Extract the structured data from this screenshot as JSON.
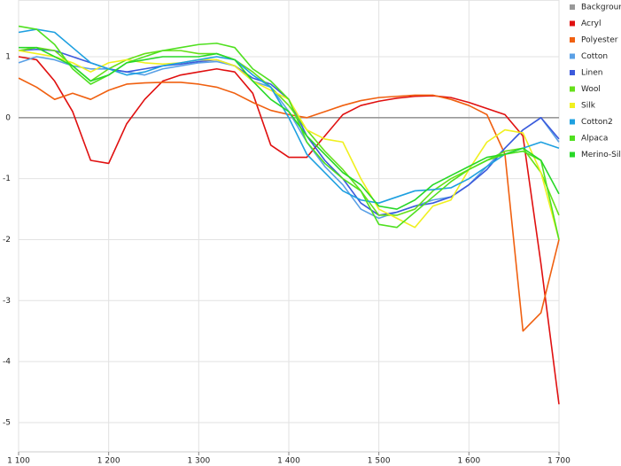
{
  "chart_data": {
    "type": "line",
    "x": [
      1100,
      1120,
      1140,
      1160,
      1180,
      1200,
      1220,
      1240,
      1260,
      1280,
      1300,
      1320,
      1340,
      1360,
      1380,
      1400,
      1420,
      1440,
      1460,
      1480,
      1500,
      1520,
      1540,
      1560,
      1580,
      1600,
      1620,
      1640,
      1660,
      1680,
      1700
    ],
    "xlim": [
      1100,
      1700
    ],
    "xticks": [
      {
        "value": 1100,
        "label": "1 100"
      },
      {
        "value": 1200,
        "label": "1 200"
      },
      {
        "value": 1300,
        "label": "1 300"
      },
      {
        "value": 1400,
        "label": "1 400"
      },
      {
        "value": 1500,
        "label": "1 500"
      },
      {
        "value": 1600,
        "label": "1 600"
      },
      {
        "value": 1700,
        "label": "1 700"
      }
    ],
    "ylim": [
      -5.48,
      1.93
    ],
    "yticks": [
      -5,
      -4,
      -3,
      -2,
      -1,
      0,
      1
    ],
    "grid": true,
    "legend": "right",
    "series": [
      {
        "name": "Background",
        "color": "#999999",
        "values": [
          0,
          0,
          0,
          0,
          0,
          0,
          0,
          0,
          0,
          0,
          0,
          0,
          0,
          0,
          0,
          0,
          0,
          0,
          0,
          0,
          0,
          0,
          0,
          0,
          0,
          0,
          0,
          0,
          0,
          0,
          0
        ]
      },
      {
        "name": "Acryl",
        "color": "#e01010",
        "values": [
          1.0,
          0.95,
          0.6,
          0.1,
          -0.7,
          -0.75,
          -0.1,
          0.3,
          0.6,
          0.7,
          0.75,
          0.8,
          0.75,
          0.4,
          -0.45,
          -0.65,
          -0.65,
          -0.3,
          0.05,
          0.2,
          0.27,
          0.32,
          0.35,
          0.36,
          0.33,
          0.25,
          0.15,
          0.05,
          -0.3,
          -2.4,
          -4.7
        ]
      },
      {
        "name": "Polyester",
        "color": "#f06010",
        "values": [
          0.65,
          0.5,
          0.3,
          0.4,
          0.3,
          0.45,
          0.55,
          0.57,
          0.58,
          0.58,
          0.55,
          0.5,
          0.4,
          0.25,
          0.12,
          0.05,
          0,
          0.1,
          0.2,
          0.28,
          0.33,
          0.35,
          0.37,
          0.37,
          0.3,
          0.2,
          0.05,
          -0.6,
          -3.5,
          -3.2,
          -2.0
        ]
      },
      {
        "name": "Cotton",
        "color": "#5aa0e6",
        "values": [
          0.9,
          1.0,
          0.95,
          0.85,
          0.8,
          0.8,
          0.75,
          0.7,
          0.8,
          0.85,
          0.9,
          0.92,
          0.85,
          0.6,
          0.5,
          0.1,
          -0.4,
          -0.8,
          -1.1,
          -1.5,
          -1.65,
          -1.55,
          -1.45,
          -1.35,
          -1.3,
          -1.1,
          -0.8,
          -0.5,
          -0.2,
          0.0,
          -0.4
        ]
      },
      {
        "name": "Linen",
        "color": "#3c5adc",
        "values": [
          1.1,
          1.12,
          1.1,
          1.0,
          0.9,
          0.8,
          0.75,
          0.8,
          0.85,
          0.88,
          0.92,
          0.95,
          0.85,
          0.65,
          0.55,
          0.3,
          -0.3,
          -0.7,
          -1.0,
          -1.4,
          -1.6,
          -1.55,
          -1.45,
          -1.4,
          -1.3,
          -1.1,
          -0.85,
          -0.5,
          -0.2,
          0.0,
          -0.35
        ]
      },
      {
        "name": "Wool",
        "color": "#66e01a",
        "values": [
          1.1,
          1.15,
          1.1,
          0.85,
          0.6,
          0.8,
          0.95,
          1.05,
          1.1,
          1.1,
          1.05,
          1.05,
          0.95,
          0.75,
          0.5,
          0.2,
          -0.2,
          -0.55,
          -0.85,
          -1.2,
          -1.6,
          -1.6,
          -1.5,
          -1.2,
          -1.0,
          -0.85,
          -0.7,
          -0.55,
          -0.5,
          -0.9,
          -1.6
        ]
      },
      {
        "name": "Silk",
        "color": "#f0f020",
        "values": [
          1.1,
          1.05,
          1.0,
          0.9,
          0.75,
          0.9,
          0.95,
          0.9,
          0.88,
          0.9,
          0.95,
          0.95,
          0.85,
          0.6,
          0.45,
          0.3,
          -0.2,
          -0.35,
          -0.4,
          -1.0,
          -1.5,
          -1.65,
          -1.8,
          -1.45,
          -1.35,
          -0.85,
          -0.4,
          -0.2,
          -0.25,
          -0.9,
          -2.0
        ]
      },
      {
        "name": "Cotton2",
        "color": "#1ea0e0",
        "values": [
          1.4,
          1.45,
          1.4,
          1.15,
          0.9,
          0.8,
          0.7,
          0.75,
          0.85,
          0.9,
          0.95,
          1.0,
          0.95,
          0.7,
          0.5,
          0.0,
          -0.6,
          -0.9,
          -1.2,
          -1.35,
          -1.4,
          -1.3,
          -1.2,
          -1.18,
          -1.15,
          -1.0,
          -0.8,
          -0.6,
          -0.5,
          -0.4,
          -0.5
        ]
      },
      {
        "name": "Alpaca",
        "color": "#50e020",
        "values": [
          1.5,
          1.45,
          1.2,
          0.8,
          0.55,
          0.7,
          0.9,
          1.0,
          1.1,
          1.15,
          1.2,
          1.22,
          1.15,
          0.8,
          0.6,
          0.3,
          -0.4,
          -0.75,
          -1.0,
          -1.2,
          -1.75,
          -1.8,
          -1.55,
          -1.3,
          -1.05,
          -0.85,
          -0.7,
          -0.6,
          -0.55,
          -0.7,
          -2.0
        ]
      },
      {
        "name": "Merino-Silk",
        "color": "#28d828",
        "values": [
          1.15,
          1.15,
          1.0,
          0.85,
          0.6,
          0.7,
          0.9,
          0.95,
          1.0,
          1.0,
          1.0,
          1.05,
          0.95,
          0.6,
          0.3,
          0.1,
          -0.3,
          -0.6,
          -0.9,
          -1.1,
          -1.45,
          -1.5,
          -1.35,
          -1.1,
          -0.95,
          -0.8,
          -0.65,
          -0.6,
          -0.5,
          -0.7,
          -1.25
        ]
      }
    ]
  }
}
